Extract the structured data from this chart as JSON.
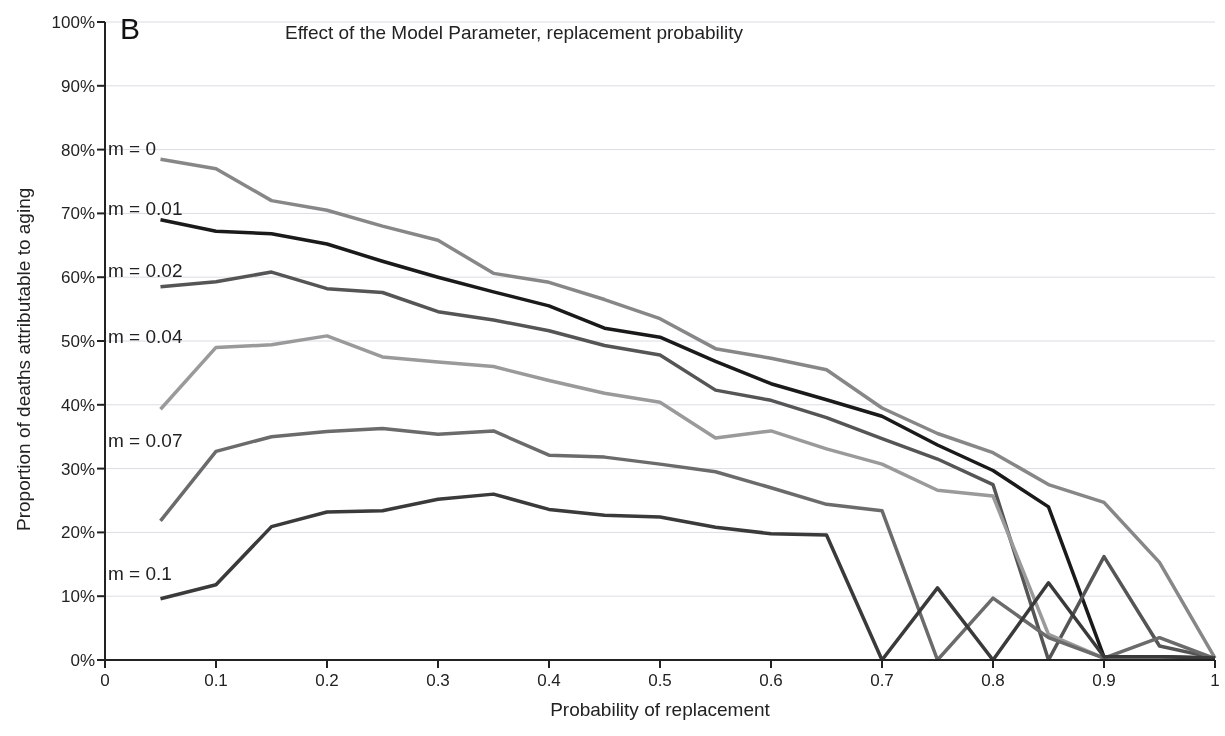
{
  "chart_data": {
    "type": "line",
    "title": "Effect of the Model Parameter, replacement probability",
    "annotations": [
      "B"
    ],
    "xlabel": "Probability of replacement",
    "ylabel": "Proportion of deaths attributable to aging",
    "x": [
      0.05,
      0.1,
      0.15,
      0.2,
      0.25,
      0.3,
      0.35,
      0.4,
      0.45,
      0.5,
      0.55,
      0.6,
      0.65,
      0.7,
      0.75,
      0.8,
      0.85,
      0.9,
      0.95,
      1
    ],
    "series": [
      {
        "name": "m = 0",
        "color": "#878787",
        "values": [
          78.5,
          77,
          72,
          70.5,
          68,
          65.8,
          60.6,
          59.2,
          56.5,
          53.5,
          48.8,
          47.3,
          45.5,
          39.5,
          35.5,
          32.5,
          27.5,
          24.7,
          15.3,
          0.3
        ]
      },
      {
        "name": "m = 0.01",
        "color": "#1a1a1a",
        "values": [
          69,
          67.2,
          66.8,
          65.2,
          62.5,
          60,
          57.7,
          55.5,
          52,
          50.6,
          46.8,
          43.3,
          40.8,
          38.2,
          33.7,
          29.7,
          24,
          0.5,
          0.5,
          0.3
        ]
      },
      {
        "name": "m = 0.02",
        "color": "#555555",
        "values": [
          58.5,
          59.3,
          60.8,
          58.2,
          57.6,
          54.6,
          53.3,
          51.6,
          49.3,
          47.8,
          42.3,
          40.7,
          38,
          34.7,
          31.5,
          27.5,
          0,
          16.2,
          2.2,
          0.3
        ]
      },
      {
        "name": "m = 0.04",
        "color": "#9a9a9a",
        "values": [
          39.3,
          49,
          49.4,
          50.8,
          47.5,
          46.7,
          46,
          43.8,
          41.8,
          40.4,
          34.8,
          35.9,
          33.1,
          30.7,
          26.6,
          25.7,
          4,
          0.3,
          0.2,
          0.2
        ]
      },
      {
        "name": "m = 0.07",
        "color": "#6b6b6b",
        "values": [
          21.8,
          32.7,
          35,
          35.8,
          36.3,
          35.4,
          35.9,
          32.1,
          31.8,
          30.7,
          29.5,
          27,
          24.4,
          23.4,
          0,
          9.7,
          3.5,
          0.3,
          3.5,
          0.2
        ]
      },
      {
        "name": "m = 0.1",
        "color": "#3a3a3a",
        "values": [
          9.6,
          11.8,
          20.9,
          23.2,
          23.4,
          25.2,
          26,
          23.6,
          22.7,
          22.4,
          20.8,
          19.8,
          19.6,
          0,
          11.3,
          0,
          12.1,
          0.5,
          0.5,
          0.3
        ]
      }
    ],
    "xlim": [
      0,
      1
    ],
    "xticks": [
      0,
      0.1,
      0.2,
      0.3,
      0.4,
      0.5,
      0.6,
      0.7,
      0.8,
      0.9,
      1
    ],
    "ylim": [
      0,
      100
    ],
    "yticks": [
      {
        "value": 0,
        "label": "0%"
      },
      {
        "value": 10,
        "label": "10%"
      },
      {
        "value": 20,
        "label": "20%"
      },
      {
        "value": 30,
        "label": "30%"
      },
      {
        "value": 40,
        "label": "40%"
      },
      {
        "value": 50,
        "label": "50%"
      },
      {
        "value": 60,
        "label": "60%"
      },
      {
        "value": 70,
        "label": "70%"
      },
      {
        "value": 80,
        "label": "80%"
      },
      {
        "value": 90,
        "label": "90%"
      },
      {
        "value": 100,
        "label": "100%"
      }
    ],
    "grid": "y",
    "legend": false,
    "marker": "none",
    "line_style": "solid"
  }
}
